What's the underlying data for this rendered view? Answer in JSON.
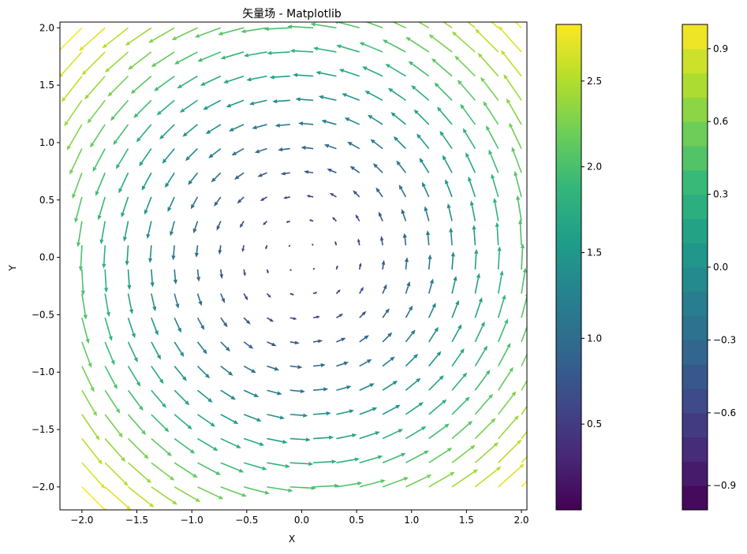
{
  "chart_data": {
    "type": "quiver",
    "title": "矢量场 - Matplotlib",
    "xlabel": "X",
    "ylabel": "Y",
    "xlim": [
      -2.2,
      2.05
    ],
    "ylim": [
      -2.2,
      2.05
    ],
    "x_ticks": [
      -2.0,
      -1.5,
      -1.0,
      -0.5,
      0.0,
      0.5,
      1.0,
      1.5,
      2.0
    ],
    "y_ticks": [
      -2.0,
      -1.5,
      -1.0,
      -0.5,
      0.0,
      0.5,
      1.0,
      1.5,
      2.0
    ],
    "x_tick_labels": [
      "−2.0",
      "−1.5",
      "−1.0",
      "−0.5",
      "0.0",
      "0.5",
      "1.0",
      "1.5",
      "2.0"
    ],
    "y_tick_labels": [
      "−2.0",
      "−1.5",
      "−1.0",
      "−0.5",
      "0.0",
      "0.5",
      "1.0",
      "1.5",
      "2.0"
    ],
    "field": {
      "grid_x": {
        "start": -2.0,
        "stop": 2.0,
        "count": 20
      },
      "grid_y": {
        "start": -2.0,
        "stop": 2.0,
        "count": 20
      },
      "u": "-y",
      "v": "x",
      "color_by": "magnitude",
      "colormap": "viridis"
    },
    "colorbars": [
      {
        "label": "",
        "range": [
          0,
          2.83
        ],
        "ticks": [
          0.5,
          1.0,
          1.5,
          2.0,
          2.5
        ],
        "tick_labels": [
          "0.5",
          "1.0",
          "1.5",
          "2.0",
          "2.5"
        ],
        "style": "continuous"
      },
      {
        "label": "",
        "range": [
          -1.0,
          1.0
        ],
        "ticks": [
          -0.9,
          -0.6,
          -0.3,
          0.0,
          0.3,
          0.6,
          0.9
        ],
        "tick_labels": [
          "−0.9",
          "−0.6",
          "−0.3",
          "0.0",
          "0.3",
          "0.6",
          "0.9"
        ],
        "style": "discrete",
        "levels": 20
      }
    ],
    "grid": false,
    "legend": "none"
  }
}
